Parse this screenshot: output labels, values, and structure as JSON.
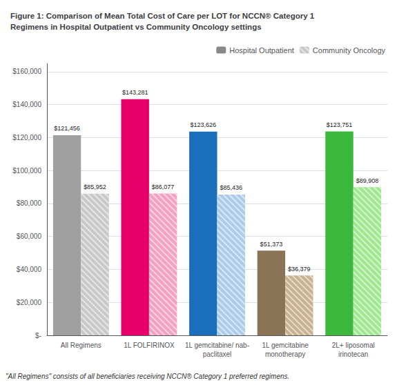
{
  "chart_data": {
    "type": "bar",
    "title": "Figure 1: Comparison of Mean Total Cost of Care per LOT for NCCN® Category 1\nRegimens in Hospital Outpatient vs Community Oncology settings",
    "footnote": "\"All Regimens\" consists of all beneficiaries receiving NCCN® Category 1 preferred regimens.",
    "categories": [
      "All Regimens",
      "1L FOLFIRINOX",
      "1L gemcitabine/ nab-\npaclitaxel",
      "1L gemcitabine\nmonotherapy",
      "2L+ liposomal\nirinotecan"
    ],
    "series": [
      {
        "name": "Hospital Outpatient",
        "color": "#888888",
        "colors": [
          "#A0A0A0",
          "#E8006A",
          "#1B6FBA",
          "#8B7355",
          "#3CB83C"
        ],
        "values": [
          121456,
          143281,
          123626,
          51373,
          123751
        ],
        "value_labels": [
          "$121,456",
          "$143,281",
          "$123,626",
          "$51,373",
          "$123,751"
        ]
      },
      {
        "name": "Community Oncology",
        "color": "#C8C8C8",
        "colors": [
          "#C8C8C8",
          "#F4A0C0",
          "#AACCE8",
          "#C8B090",
          "#A0E890"
        ],
        "values": [
          85952,
          86077,
          85436,
          36379,
          89908
        ],
        "value_labels": [
          "$85,952",
          "$86,077",
          "$85,436",
          "$36,379",
          "$89,908"
        ]
      }
    ],
    "ylim": [
      0,
      165000
    ],
    "yticks": [
      {
        "value": 0,
        "label": "$-"
      },
      {
        "value": 20000,
        "label": "$20,000"
      },
      {
        "value": 40000,
        "label": "$40,000"
      },
      {
        "value": 60000,
        "label": "$60,000"
      },
      {
        "value": 80000,
        "label": "$80,000"
      },
      {
        "value": 100000,
        "label": "$100,000"
      },
      {
        "value": 120000,
        "label": "$120,000"
      },
      {
        "value": 140000,
        "label": "$140,000"
      },
      {
        "value": 160000,
        "label": "$160,000"
      }
    ],
    "grid": true,
    "legend": "upper right",
    "data_labels": true
  }
}
